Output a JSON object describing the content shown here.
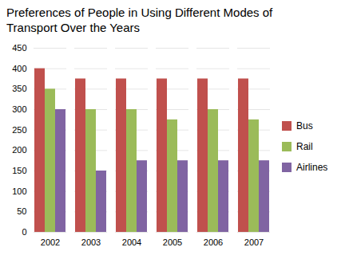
{
  "chart_data": {
    "type": "bar",
    "title": "Preferences of People in Using Different Modes of Transport Over the Years",
    "categories": [
      "2002",
      "2003",
      "2004",
      "2005",
      "2006",
      "2007"
    ],
    "series": [
      {
        "name": "Bus",
        "color": "#C0504D",
        "values": [
          400,
          375,
          375,
          375,
          375,
          375
        ]
      },
      {
        "name": "Rail",
        "color": "#9BBB59",
        "values": [
          350,
          300,
          300,
          275,
          300,
          275
        ]
      },
      {
        "name": "Airlines",
        "color": "#8064A2",
        "values": [
          300,
          150,
          175,
          175,
          175,
          175
        ]
      }
    ],
    "ylim": [
      0,
      450
    ],
    "yticks": [
      0,
      50,
      100,
      150,
      200,
      250,
      300,
      350,
      400,
      450
    ],
    "grid": true,
    "legend": "right"
  }
}
